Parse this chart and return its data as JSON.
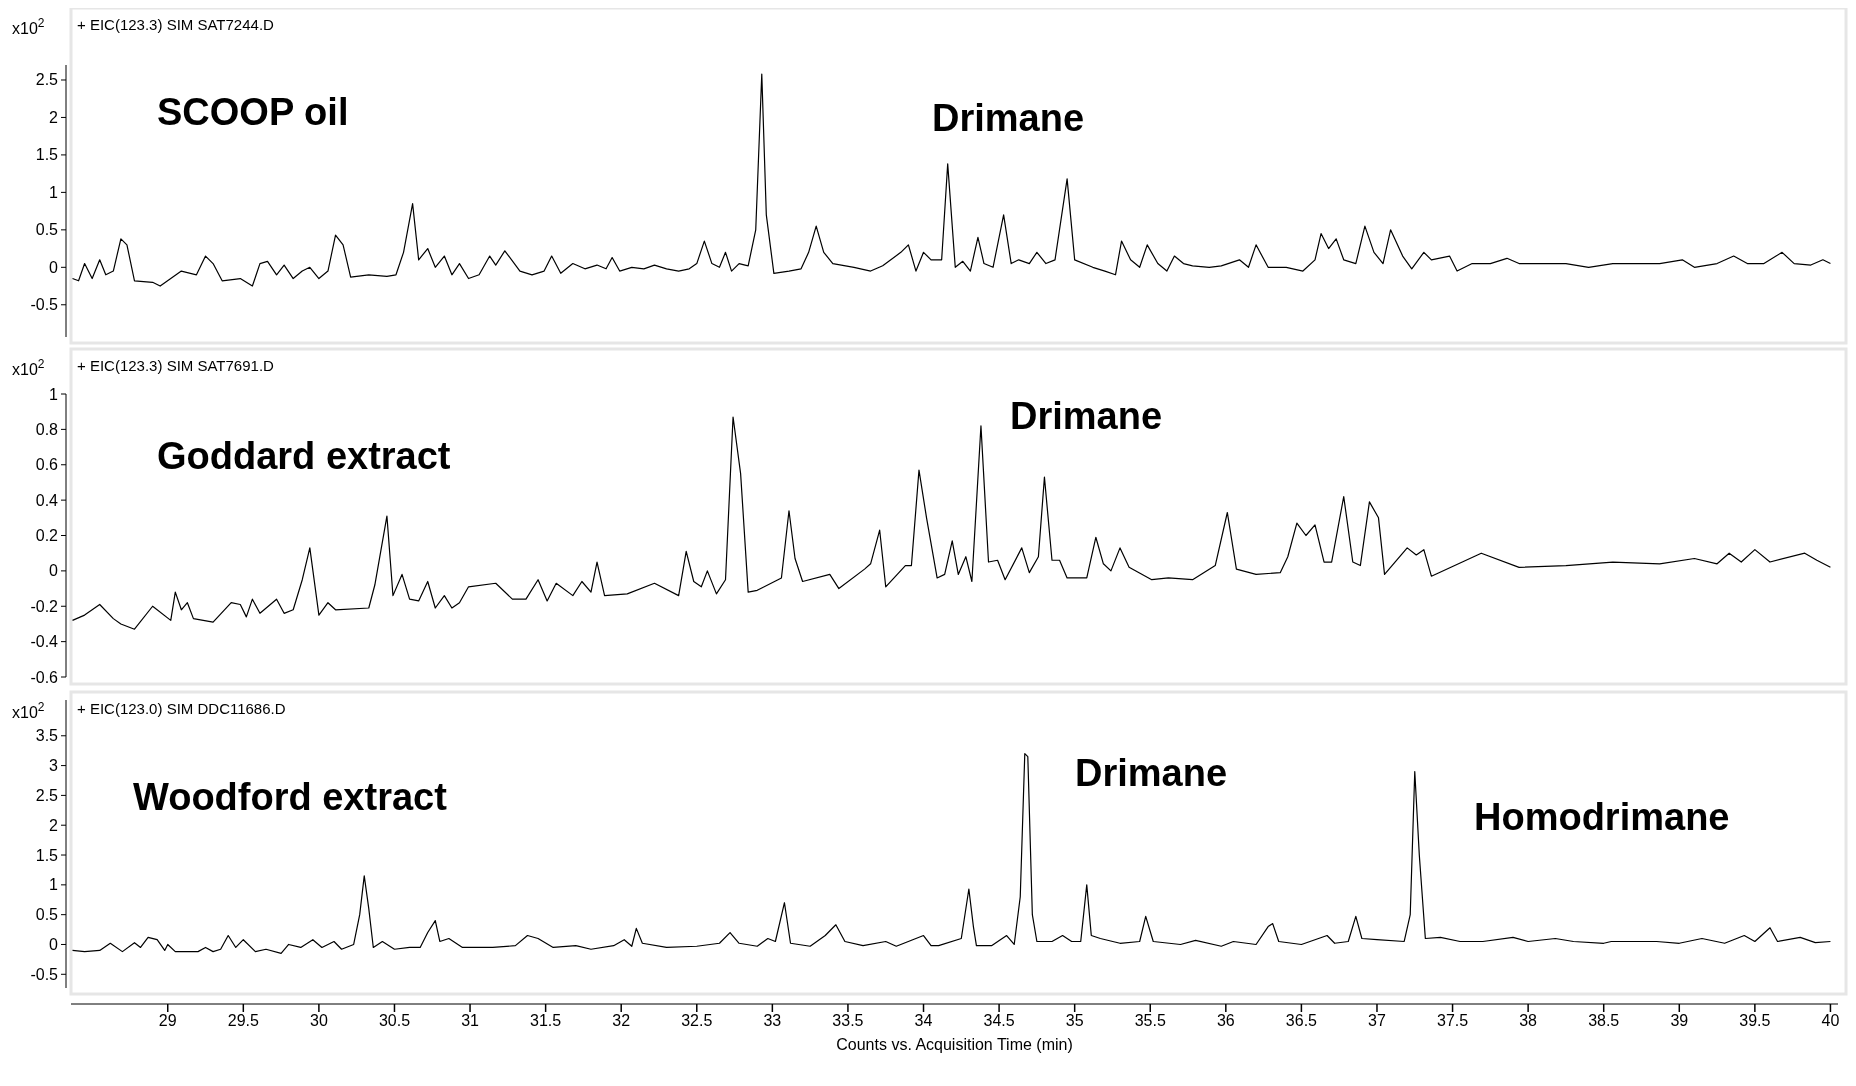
{
  "chart_data": [
    {
      "type": "line",
      "title": "+ EIC(123.3) SIM SAT7244.D",
      "ylabel": "x10$^{2}$",
      "annotations": [
        "SCOOP oil",
        "Drimane"
      ],
      "xlim": [
        28.36,
        40.05
      ],
      "ylim": [
        -0.93,
        2.7
      ],
      "yticks": [
        -0.5,
        0,
        0.5,
        1,
        1.5,
        2,
        2.5
      ],
      "tick_labels": "y",
      "x": [
        28.37,
        28.41,
        28.45,
        28.5,
        28.55,
        28.59,
        28.64,
        28.69,
        28.73,
        28.78,
        28.9,
        28.95,
        29.02,
        29.09,
        29.19,
        29.25,
        29.3,
        29.36,
        29.48,
        29.56,
        29.61,
        29.66,
        29.72,
        29.77,
        29.83,
        29.89,
        29.94,
        30.0,
        30.06,
        30.11,
        30.16,
        30.21,
        30.33,
        30.45,
        30.51,
        30.56,
        30.62,
        30.66,
        30.72,
        30.77,
        30.83,
        30.88,
        30.93,
        30.99,
        31.06,
        31.13,
        31.17,
        31.23,
        31.33,
        31.41,
        31.49,
        31.54,
        31.6,
        31.68,
        31.76,
        31.84,
        31.9,
        31.94,
        31.99,
        32.07,
        32.15,
        32.22,
        32.3,
        32.38,
        32.45,
        32.5,
        32.55,
        32.6,
        32.65,
        32.69,
        32.73,
        32.78,
        32.84,
        32.89,
        32.93,
        32.96,
        33.01,
        33.11,
        33.19,
        33.24,
        33.29,
        33.34,
        33.4,
        33.54,
        33.65,
        33.73,
        33.85,
        33.9,
        33.95,
        34.0,
        34.05,
        34.12,
        34.16,
        34.21,
        34.26,
        34.31,
        34.36,
        34.4,
        34.46,
        34.53,
        34.58,
        34.63,
        34.7,
        34.75,
        34.81,
        34.87,
        34.95,
        35.0,
        35.12,
        35.2,
        35.27,
        35.31,
        35.37,
        35.43,
        35.48,
        35.55,
        35.61,
        35.66,
        35.72,
        35.78,
        35.89,
        35.97,
        36.09,
        36.15,
        36.2,
        36.28,
        36.4,
        36.51,
        36.59,
        36.63,
        36.68,
        36.73,
        36.78,
        36.86,
        36.92,
        36.98,
        37.04,
        37.09,
        37.17,
        37.23,
        37.31,
        37.36,
        37.48,
        37.53,
        37.63,
        37.75,
        37.86,
        37.94,
        38.1,
        38.25,
        38.4,
        38.56,
        38.71,
        38.87,
        39.02,
        39.1,
        39.25,
        39.36,
        39.45,
        39.56,
        39.68,
        39.76,
        39.87,
        39.95,
        40.0
      ],
      "series": [
        {
          "color": "#000000",
          "values": [
            -0.15,
            -0.18,
            0.05,
            -0.15,
            0.1,
            -0.1,
            -0.05,
            0.38,
            0.3,
            -0.18,
            -0.2,
            -0.25,
            -0.15,
            -0.05,
            -0.1,
            0.15,
            0.05,
            -0.18,
            -0.15,
            -0.25,
            0.05,
            0.08,
            -0.1,
            0.03,
            -0.15,
            -0.05,
            0.0,
            -0.15,
            -0.05,
            0.43,
            0.3,
            -0.13,
            -0.1,
            -0.12,
            -0.1,
            0.2,
            0.85,
            0.1,
            0.25,
            0.0,
            0.15,
            -0.1,
            0.05,
            -0.15,
            -0.1,
            0.15,
            0.03,
            0.22,
            -0.05,
            -0.1,
            -0.05,
            0.15,
            -0.08,
            0.05,
            -0.02,
            0.03,
            -0.02,
            0.13,
            -0.05,
            0.0,
            -0.02,
            0.03,
            -0.02,
            -0.05,
            -0.02,
            0.05,
            0.35,
            0.05,
            0.0,
            0.2,
            -0.05,
            0.05,
            0.02,
            0.5,
            2.58,
            0.7,
            -0.08,
            -0.05,
            -0.02,
            0.2,
            0.55,
            0.2,
            0.05,
            0.0,
            -0.05,
            0.02,
            0.2,
            0.3,
            -0.05,
            0.2,
            0.1,
            0.1,
            1.38,
            0.0,
            0.08,
            -0.05,
            0.4,
            0.05,
            0.0,
            0.7,
            0.05,
            0.1,
            0.05,
            0.2,
            0.05,
            0.1,
            1.18,
            0.1,
            0.0,
            -0.05,
            -0.1,
            0.35,
            0.1,
            0.0,
            0.3,
            0.05,
            -0.05,
            0.15,
            0.05,
            0.02,
            0.0,
            0.02,
            0.1,
            0.0,
            0.3,
            0.0,
            0.0,
            -0.05,
            0.1,
            0.45,
            0.25,
            0.38,
            0.1,
            0.05,
            0.55,
            0.2,
            0.05,
            0.5,
            0.15,
            -0.02,
            0.2,
            0.1,
            0.15,
            -0.05,
            0.05,
            0.05,
            0.12,
            0.05,
            0.05,
            0.05,
            0.0,
            0.05,
            0.05,
            0.05,
            0.1,
            0.0,
            0.05,
            0.15,
            0.05,
            0.05,
            0.2,
            0.05,
            0.03,
            0.1,
            0.05
          ]
        }
      ]
    },
    {
      "type": "line",
      "title": "+ EIC(123.3) SIM SAT7691.D",
      "ylabel": "x10$^{2}$",
      "annotations": [
        "Goddard extract",
        "Drimane"
      ],
      "xlim": [
        28.36,
        40.05
      ],
      "ylim": [
        -0.6,
        1
      ],
      "yticks": [
        -0.6,
        -0.4,
        -0.2,
        0,
        0.2,
        0.4,
        0.6,
        0.8,
        1
      ],
      "tick_labels": "y",
      "x": [
        28.37,
        28.45,
        28.55,
        28.64,
        28.69,
        28.78,
        28.9,
        29.02,
        29.05,
        29.09,
        29.13,
        29.17,
        29.3,
        29.42,
        29.48,
        29.52,
        29.56,
        29.61,
        29.72,
        29.77,
        29.83,
        29.89,
        29.94,
        30.0,
        30.06,
        30.11,
        30.33,
        30.37,
        30.45,
        30.49,
        30.55,
        30.6,
        30.66,
        30.72,
        30.77,
        30.83,
        30.88,
        30.93,
        30.99,
        31.17,
        31.28,
        31.37,
        31.45,
        31.51,
        31.57,
        31.68,
        31.74,
        31.8,
        31.84,
        31.89,
        32.04,
        32.22,
        32.38,
        32.43,
        32.48,
        32.53,
        32.57,
        32.63,
        32.69,
        32.74,
        32.79,
        32.84,
        32.9,
        33.06,
        33.11,
        33.15,
        33.2,
        33.38,
        33.44,
        33.61,
        33.65,
        33.71,
        33.75,
        33.88,
        33.92,
        33.97,
        34.02,
        34.09,
        34.14,
        34.19,
        34.23,
        34.28,
        34.32,
        34.38,
        34.43,
        34.49,
        34.54,
        34.65,
        34.7,
        34.76,
        34.8,
        34.85,
        34.9,
        34.95,
        35.08,
        35.14,
        35.19,
        35.24,
        35.3,
        35.36,
        35.51,
        35.62,
        35.78,
        35.93,
        36.01,
        36.07,
        36.2,
        36.36,
        36.41,
        36.47,
        36.53,
        36.59,
        36.65,
        36.7,
        36.78,
        36.84,
        36.89,
        36.95,
        37.01,
        37.05,
        37.2,
        37.26,
        37.31,
        37.36,
        37.69,
        37.94,
        38.25,
        38.56,
        38.87,
        39.1,
        39.25,
        39.33,
        39.41,
        39.5,
        39.6,
        39.83,
        39.91,
        40.0
      ],
      "series": [
        {
          "color": "#000000",
          "values": [
            -0.28,
            -0.25,
            -0.19,
            -0.27,
            -0.3,
            -0.33,
            -0.2,
            -0.28,
            -0.12,
            -0.22,
            -0.18,
            -0.27,
            -0.29,
            -0.18,
            -0.19,
            -0.26,
            -0.16,
            -0.24,
            -0.16,
            -0.24,
            -0.22,
            -0.05,
            0.13,
            -0.25,
            -0.18,
            -0.22,
            -0.21,
            -0.08,
            0.31,
            -0.14,
            -0.02,
            -0.16,
            -0.17,
            -0.06,
            -0.21,
            -0.14,
            -0.21,
            -0.18,
            -0.09,
            -0.07,
            -0.16,
            -0.16,
            -0.05,
            -0.17,
            -0.07,
            -0.14,
            -0.06,
            -0.12,
            0.05,
            -0.14,
            -0.13,
            -0.07,
            -0.14,
            0.11,
            -0.06,
            -0.09,
            0.0,
            -0.13,
            -0.05,
            0.87,
            0.55,
            -0.12,
            -0.11,
            -0.04,
            0.34,
            0.07,
            -0.06,
            -0.02,
            -0.1,
            0.01,
            0.04,
            0.23,
            -0.09,
            0.03,
            0.03,
            0.57,
            0.3,
            -0.04,
            -0.02,
            0.17,
            -0.02,
            0.08,
            -0.06,
            0.82,
            0.05,
            0.06,
            -0.05,
            0.13,
            -0.01,
            0.08,
            0.53,
            0.06,
            0.06,
            -0.04,
            -0.04,
            0.19,
            0.04,
            0.0,
            0.13,
            0.02,
            -0.05,
            -0.04,
            -0.05,
            0.03,
            0.33,
            0.01,
            -0.02,
            -0.01,
            0.08,
            0.27,
            0.2,
            0.26,
            0.05,
            0.05,
            0.42,
            0.05,
            0.03,
            0.39,
            0.3,
            -0.02,
            0.13,
            0.09,
            0.12,
            -0.03,
            0.1,
            0.02,
            0.03,
            0.05,
            0.04,
            0.07,
            0.04,
            0.1,
            0.05,
            0.12,
            0.05,
            0.1,
            0.06,
            0.02
          ]
        }
      ]
    },
    {
      "type": "line",
      "title": "+ EIC(123.0) SIM DDC11686.D",
      "ylabel": "x10$^{2}$",
      "xlabel": "Counts vs. Acquisition Time (min)",
      "annotations": [
        "Woodford extract",
        "Drimane",
        "Homodrimane"
      ],
      "xlim": [
        28.36,
        40.05
      ],
      "ylim": [
        -0.73,
        4.1
      ],
      "yticks": [
        -0.5,
        0,
        0.5,
        1,
        1.5,
        2,
        2.5,
        3,
        3.5
      ],
      "xticks": [
        29,
        29.5,
        30,
        30.5,
        31,
        31.5,
        32,
        32.5,
        33,
        33.5,
        34,
        34.5,
        35,
        35.5,
        36,
        36.5,
        37,
        37.5,
        38,
        38.5,
        39,
        39.5,
        40
      ],
      "x": [
        28.37,
        28.45,
        28.55,
        28.62,
        28.7,
        28.78,
        28.82,
        28.87,
        28.93,
        28.98,
        29.0,
        29.05,
        29.2,
        29.25,
        29.3,
        29.35,
        29.4,
        29.45,
        29.5,
        29.58,
        29.65,
        29.75,
        29.8,
        29.88,
        29.96,
        30.02,
        30.1,
        30.15,
        30.23,
        30.27,
        30.3,
        30.33,
        30.36,
        30.42,
        30.5,
        30.6,
        30.67,
        30.72,
        30.77,
        30.8,
        30.86,
        30.95,
        31.05,
        31.15,
        31.3,
        31.38,
        31.45,
        31.55,
        31.7,
        31.8,
        31.95,
        32.02,
        32.07,
        32.1,
        32.14,
        32.3,
        32.5,
        32.65,
        32.72,
        32.78,
        32.9,
        32.97,
        33.02,
        33.08,
        33.12,
        33.25,
        33.35,
        33.42,
        33.48,
        33.6,
        33.75,
        33.82,
        34.0,
        34.05,
        34.1,
        34.25,
        34.3,
        34.33,
        34.35,
        34.45,
        34.55,
        34.6,
        34.64,
        34.67,
        34.69,
        34.72,
        34.75,
        34.85,
        34.92,
        34.98,
        35.04,
        35.08,
        35.11,
        35.17,
        35.3,
        35.43,
        35.47,
        35.52,
        35.7,
        35.8,
        35.97,
        36.05,
        36.2,
        36.28,
        36.31,
        36.35,
        36.5,
        36.67,
        36.72,
        36.81,
        36.86,
        36.9,
        37.0,
        37.18,
        37.22,
        37.25,
        37.28,
        37.32,
        37.42,
        37.55,
        37.7,
        37.9,
        38.0,
        38.18,
        38.3,
        38.5,
        38.55,
        38.85,
        39.0,
        39.15,
        39.3,
        39.43,
        39.5,
        39.6,
        39.65,
        39.8,
        39.9,
        40.0
      ],
      "series": [
        {
          "color": "#000000",
          "values": [
            -0.1,
            -0.12,
            -0.1,
            0.02,
            -0.12,
            0.03,
            -0.05,
            0.12,
            0.08,
            -0.1,
            0.0,
            -0.12,
            -0.12,
            -0.05,
            -0.12,
            -0.08,
            0.15,
            -0.05,
            0.08,
            -0.12,
            -0.08,
            -0.15,
            0.0,
            -0.05,
            0.08,
            -0.05,
            0.05,
            -0.08,
            0.0,
            0.5,
            1.15,
            0.6,
            -0.05,
            0.05,
            -0.08,
            -0.05,
            -0.05,
            0.2,
            0.4,
            0.05,
            0.1,
            -0.05,
            -0.05,
            -0.05,
            -0.02,
            0.15,
            0.1,
            -0.05,
            -0.02,
            -0.08,
            -0.02,
            0.08,
            -0.03,
            0.27,
            0.02,
            -0.05,
            -0.03,
            0.02,
            0.2,
            0.02,
            -0.03,
            0.1,
            0.05,
            0.7,
            0.02,
            -0.03,
            0.15,
            0.33,
            0.05,
            -0.02,
            0.05,
            -0.03,
            0.15,
            -0.02,
            -0.02,
            0.1,
            0.93,
            0.3,
            -0.02,
            -0.02,
            0.15,
            0.0,
            0.8,
            3.2,
            3.15,
            0.5,
            0.05,
            0.05,
            0.15,
            0.05,
            0.05,
            1.0,
            0.15,
            0.1,
            0.02,
            0.05,
            0.47,
            0.05,
            0.0,
            0.07,
            -0.03,
            0.05,
            0.0,
            0.3,
            0.35,
            0.05,
            0.0,
            0.15,
            0.02,
            0.05,
            0.47,
            0.1,
            0.08,
            0.05,
            0.5,
            2.9,
            1.5,
            0.1,
            0.12,
            0.05,
            0.05,
            0.12,
            0.05,
            0.1,
            0.05,
            0.02,
            0.05,
            0.05,
            0.02,
            0.1,
            0.02,
            0.15,
            0.05,
            0.28,
            0.05,
            0.12,
            0.03,
            0.05
          ]
        }
      ]
    }
  ]
}
